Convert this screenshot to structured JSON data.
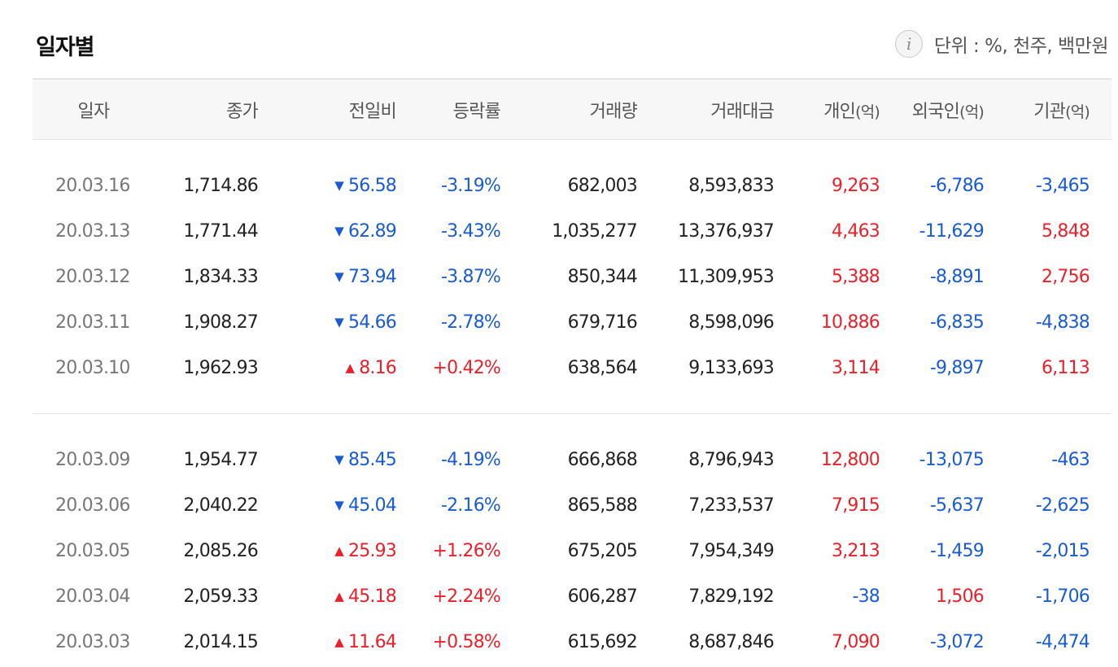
{
  "header": {
    "title": "일자별",
    "info_icon_glyph": "i",
    "unit_text": "단위 : %, 천주, 백만원"
  },
  "columns": {
    "date": "일자",
    "close": "종가",
    "change": "전일비",
    "rate": "등락률",
    "volume": "거래량",
    "amount": "거래대금",
    "individual": "개인",
    "foreign": "외국인",
    "institution": "기관",
    "unit_suffix": "(억)"
  },
  "colors": {
    "up": "#e8212b",
    "down": "#1a5ccf"
  },
  "groups": [
    {
      "rows": [
        {
          "date": "20.03.16",
          "close": "1,714.86",
          "dir": "down",
          "change": "56.58",
          "rate": "-3.19%",
          "volume": "682,003",
          "amount": "8,593,833",
          "individual": "9,263",
          "foreign": "-6,786",
          "institution": "-3,465"
        },
        {
          "date": "20.03.13",
          "close": "1,771.44",
          "dir": "down",
          "change": "62.89",
          "rate": "-3.43%",
          "volume": "1,035,277",
          "amount": "13,376,937",
          "individual": "4,463",
          "foreign": "-11,629",
          "institution": "5,848"
        },
        {
          "date": "20.03.12",
          "close": "1,834.33",
          "dir": "down",
          "change": "73.94",
          "rate": "-3.87%",
          "volume": "850,344",
          "amount": "11,309,953",
          "individual": "5,388",
          "foreign": "-8,891",
          "institution": "2,756"
        },
        {
          "date": "20.03.11",
          "close": "1,908.27",
          "dir": "down",
          "change": "54.66",
          "rate": "-2.78%",
          "volume": "679,716",
          "amount": "8,598,096",
          "individual": "10,886",
          "foreign": "-6,835",
          "institution": "-4,838"
        },
        {
          "date": "20.03.10",
          "close": "1,962.93",
          "dir": "up",
          "change": "8.16",
          "rate": "+0.42%",
          "volume": "638,564",
          "amount": "9,133,693",
          "individual": "3,114",
          "foreign": "-9,897",
          "institution": "6,113"
        }
      ]
    },
    {
      "rows": [
        {
          "date": "20.03.09",
          "close": "1,954.77",
          "dir": "down",
          "change": "85.45",
          "rate": "-4.19%",
          "volume": "666,868",
          "amount": "8,796,943",
          "individual": "12,800",
          "foreign": "-13,075",
          "institution": "-463"
        },
        {
          "date": "20.03.06",
          "close": "2,040.22",
          "dir": "down",
          "change": "45.04",
          "rate": "-2.16%",
          "volume": "865,588",
          "amount": "7,233,537",
          "individual": "7,915",
          "foreign": "-5,637",
          "institution": "-2,625"
        },
        {
          "date": "20.03.05",
          "close": "2,085.26",
          "dir": "up",
          "change": "25.93",
          "rate": "+1.26%",
          "volume": "675,205",
          "amount": "7,954,349",
          "individual": "3,213",
          "foreign": "-1,459",
          "institution": "-2,015"
        },
        {
          "date": "20.03.04",
          "close": "2,059.33",
          "dir": "up",
          "change": "45.18",
          "rate": "+2.24%",
          "volume": "606,287",
          "amount": "7,829,192",
          "individual": "-38",
          "foreign": "1,506",
          "institution": "-1,706"
        },
        {
          "date": "20.03.03",
          "close": "2,014.15",
          "dir": "up",
          "change": "11.64",
          "rate": "+0.58%",
          "volume": "615,692",
          "amount": "8,687,846",
          "individual": "7,090",
          "foreign": "-3,072",
          "institution": "-4,474"
        }
      ]
    }
  ]
}
